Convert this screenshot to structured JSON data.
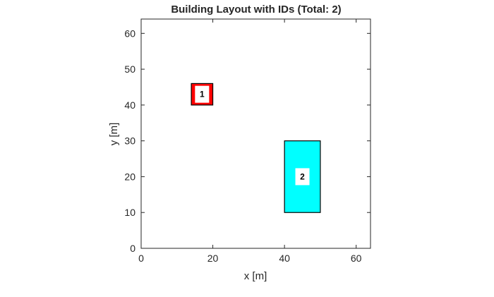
{
  "figure": {
    "title": "Building Layout with IDs (Total: 2)",
    "background": "#ffffff"
  },
  "chart_data": {
    "type": "rectangle-layout",
    "title": "Building Layout with IDs (Total: 2)",
    "xlabel": "x [m]",
    "ylabel": "y [m]",
    "xlim": [
      0,
      64
    ],
    "ylim": [
      0,
      64
    ],
    "xticks": [
      0,
      20,
      40,
      60
    ],
    "yticks": [
      0,
      10,
      20,
      30,
      40,
      50,
      60
    ],
    "grid": false,
    "box": true,
    "buildings": [
      {
        "id": "1",
        "x_range": [
          14,
          20
        ],
        "y_range": [
          40,
          46
        ],
        "face_color": "#ff0000",
        "label_x": 17,
        "label_y": 43
      },
      {
        "id": "2",
        "x_range": [
          40,
          50
        ],
        "y_range": [
          10,
          30
        ],
        "face_color": "#00ffff",
        "label_x": 45,
        "label_y": 20
      }
    ],
    "colors": {
      "axis": "#262626",
      "edge": "#000000",
      "label_box": "#ffffff"
    }
  }
}
